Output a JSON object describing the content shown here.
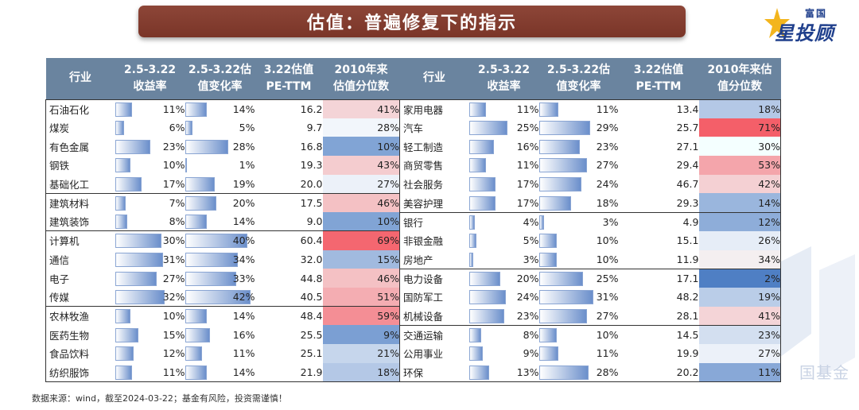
{
  "title": "估值：普遍修复下的指示",
  "logo": {
    "top": "富国",
    "main": "星投顾"
  },
  "watermark": "国基金",
  "headers": {
    "industry": "行业",
    "return": [
      "2.5-3.22",
      "收益率"
    ],
    "val_change": [
      "2.5-3.22估",
      "值变化率"
    ],
    "pe": [
      "3.22估值",
      "PE-TTM"
    ],
    "percentile_left": [
      "2010年来",
      "估值分位数"
    ],
    "percentile_right": [
      "2010年来估",
      "值分位数"
    ]
  },
  "colors": {
    "header_bg": "#6a849f",
    "banner_bg": "#7a3528",
    "bar": "#6b8fcb",
    "high": "#f4606a",
    "low": "#4f7fc4"
  },
  "left_rows": [
    {
      "industry": "石油石化",
      "ret": "11%",
      "ret_v": 11,
      "chg": "14%",
      "chg_v": 14,
      "pe": "16.2",
      "pct": "41%",
      "pct_v": 41
    },
    {
      "industry": "煤炭",
      "ret": "6%",
      "ret_v": 6,
      "chg": "5%",
      "chg_v": 5,
      "pe": "9.7",
      "pct": "28%",
      "pct_v": 28
    },
    {
      "industry": "有色金属",
      "ret": "23%",
      "ret_v": 23,
      "chg": "28%",
      "chg_v": 28,
      "pe": "16.8",
      "pct": "10%",
      "pct_v": 10
    },
    {
      "industry": "钢铁",
      "ret": "10%",
      "ret_v": 10,
      "chg": "1%",
      "chg_v": 1,
      "pe": "19.3",
      "pct": "43%",
      "pct_v": 43
    },
    {
      "industry": "基础化工",
      "ret": "17%",
      "ret_v": 17,
      "chg": "19%",
      "chg_v": 19,
      "pe": "20.0",
      "pct": "27%",
      "pct_v": 27
    },
    {
      "industry": "建筑材料",
      "ret": "7%",
      "ret_v": 7,
      "chg": "20%",
      "chg_v": 20,
      "pe": "17.5",
      "pct": "46%",
      "pct_v": 46
    },
    {
      "industry": "建筑装饰",
      "ret": "8%",
      "ret_v": 8,
      "chg": "14%",
      "chg_v": 14,
      "pe": "9.0",
      "pct": "10%",
      "pct_v": 10
    },
    {
      "industry": "计算机",
      "ret": "30%",
      "ret_v": 30,
      "chg": "40%",
      "chg_v": 40,
      "pe": "60.4",
      "pct": "69%",
      "pct_v": 69
    },
    {
      "industry": "通信",
      "ret": "31%",
      "ret_v": 31,
      "chg": "34%",
      "chg_v": 34,
      "pe": "32.0",
      "pct": "15%",
      "pct_v": 15
    },
    {
      "industry": "电子",
      "ret": "27%",
      "ret_v": 27,
      "chg": "33%",
      "chg_v": 33,
      "pe": "44.8",
      "pct": "46%",
      "pct_v": 46
    },
    {
      "industry": "传媒",
      "ret": "32%",
      "ret_v": 32,
      "chg": "42%",
      "chg_v": 42,
      "pe": "40.5",
      "pct": "51%",
      "pct_v": 51
    },
    {
      "industry": "农林牧渔",
      "ret": "10%",
      "ret_v": 10,
      "chg": "14%",
      "chg_v": 14,
      "pe": "48.4",
      "pct": "59%",
      "pct_v": 59
    },
    {
      "industry": "医药生物",
      "ret": "15%",
      "ret_v": 15,
      "chg": "16%",
      "chg_v": 16,
      "pe": "25.5",
      "pct": "9%",
      "pct_v": 9
    },
    {
      "industry": "食品饮料",
      "ret": "12%",
      "ret_v": 12,
      "chg": "11%",
      "chg_v": 11,
      "pe": "25.1",
      "pct": "21%",
      "pct_v": 21
    },
    {
      "industry": "纺织服饰",
      "ret": "11%",
      "ret_v": 11,
      "chg": "14%",
      "chg_v": 14,
      "pe": "21.9",
      "pct": "18%",
      "pct_v": 18
    }
  ],
  "right_rows": [
    {
      "industry": "家用电器",
      "ret": "11%",
      "ret_v": 11,
      "chg": "11%",
      "chg_v": 11,
      "pe": "13.4",
      "pct": "18%",
      "pct_v": 18
    },
    {
      "industry": "汽车",
      "ret": "25%",
      "ret_v": 25,
      "chg": "29%",
      "chg_v": 29,
      "pe": "25.7",
      "pct": "71%",
      "pct_v": 71
    },
    {
      "industry": "轻工制造",
      "ret": "16%",
      "ret_v": 16,
      "chg": "23%",
      "chg_v": 23,
      "pe": "27.1",
      "pct": "30%",
      "pct_v": 30
    },
    {
      "industry": "商贸零售",
      "ret": "11%",
      "ret_v": 11,
      "chg": "27%",
      "chg_v": 27,
      "pe": "29.4",
      "pct": "53%",
      "pct_v": 53
    },
    {
      "industry": "社会服务",
      "ret": "17%",
      "ret_v": 17,
      "chg": "24%",
      "chg_v": 24,
      "pe": "46.7",
      "pct": "42%",
      "pct_v": 42
    },
    {
      "industry": "美容护理",
      "ret": "17%",
      "ret_v": 17,
      "chg": "18%",
      "chg_v": 18,
      "pe": "29.3",
      "pct": "14%",
      "pct_v": 14
    },
    {
      "industry": "银行",
      "ret": "4%",
      "ret_v": 4,
      "chg": "3%",
      "chg_v": 3,
      "pe": "4.9",
      "pct": "12%",
      "pct_v": 12
    },
    {
      "industry": "非银金融",
      "ret": "5%",
      "ret_v": 5,
      "chg": "10%",
      "chg_v": 10,
      "pe": "15.1",
      "pct": "26%",
      "pct_v": 26
    },
    {
      "industry": "房地产",
      "ret": "3%",
      "ret_v": 3,
      "chg": "10%",
      "chg_v": 10,
      "pe": "11.9",
      "pct": "34%",
      "pct_v": 34
    },
    {
      "industry": "电力设备",
      "ret": "20%",
      "ret_v": 20,
      "chg": "25%",
      "chg_v": 25,
      "pe": "17.1",
      "pct": "2%",
      "pct_v": 2
    },
    {
      "industry": "国防军工",
      "ret": "24%",
      "ret_v": 24,
      "chg": "31%",
      "chg_v": 31,
      "pe": "48.2",
      "pct": "19%",
      "pct_v": 19
    },
    {
      "industry": "机械设备",
      "ret": "23%",
      "ret_v": 23,
      "chg": "27%",
      "chg_v": 27,
      "pe": "28.1",
      "pct": "41%",
      "pct_v": 41
    },
    {
      "industry": "交通运输",
      "ret": "8%",
      "ret_v": 8,
      "chg": "10%",
      "chg_v": 10,
      "pe": "14.5",
      "pct": "23%",
      "pct_v": 23
    },
    {
      "industry": "公用事业",
      "ret": "9%",
      "ret_v": 9,
      "chg": "11%",
      "chg_v": 11,
      "pe": "19.9",
      "pct": "27%",
      "pct_v": 27
    },
    {
      "industry": "环保",
      "ret": "13%",
      "ret_v": 13,
      "chg": "28%",
      "chg_v": 28,
      "pe": "20.2",
      "pct": "11%",
      "pct_v": 11
    }
  ],
  "footnote": "数据来源：wind，截至2024-03-22；基金有风险，投资需谨慎！"
}
